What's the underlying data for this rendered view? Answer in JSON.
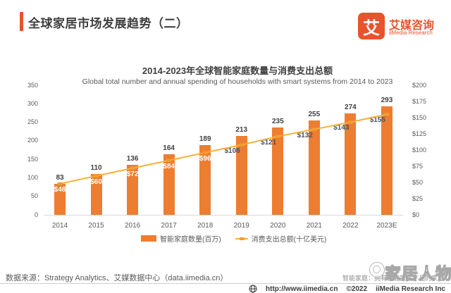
{
  "header": {
    "title": "全球家居市场发展趋势（二）",
    "logo": {
      "glyph": "艾",
      "name": "艾媒咨询",
      "subname": "iiMedia Research"
    }
  },
  "chart_data": {
    "type": "bar+line",
    "title": "2014-2023年全球智能家庭数量与消费支出总额",
    "subtitle": "Global total number and  annual spending of households with smart systems from 2014 to 2023",
    "categories": [
      "2014",
      "2015",
      "2016",
      "2017",
      "2018",
      "2019",
      "2020",
      "2021",
      "2022",
      "2023E"
    ],
    "series": [
      {
        "name": "智能家庭数量(百万)",
        "type": "bar",
        "axis": "left",
        "color": "#ED7D31",
        "values": [
          83,
          110,
          136,
          164,
          189,
          213,
          235,
          255,
          274,
          293
        ]
      },
      {
        "name": "消费支出总额(十亿美元)",
        "type": "line",
        "axis": "right",
        "color": "#FBB034",
        "marker_color": "#EFA02F",
        "label_prefix": "$",
        "values": [
          48,
          60,
          72,
          84,
          96,
          108,
          121,
          132,
          143,
          155
        ]
      }
    ],
    "left_axis": {
      "min": 0,
      "max": 350,
      "step": 50,
      "prefix": ""
    },
    "right_axis": {
      "min": 0,
      "max": 200,
      "step": 25,
      "prefix": "$"
    },
    "grid": "off",
    "legend_position": "bottom"
  },
  "footnotes": {
    "source": "数据来源：Strategy Analytics、艾媒数据中心（data.iimedia.cn）",
    "definition": "智能家庭：拥有智能家居产品的家庭"
  },
  "watermark": {
    "text": "家居人物"
  },
  "footer": {
    "url": "http://www.iimedia.cn",
    "copyright": "©2022",
    "company": "iiMedia Research  Inc"
  },
  "colors": {
    "brand": "#E8532D",
    "bar": "#ED7D31",
    "line": "#FBB034",
    "axis_text": "#595959"
  }
}
